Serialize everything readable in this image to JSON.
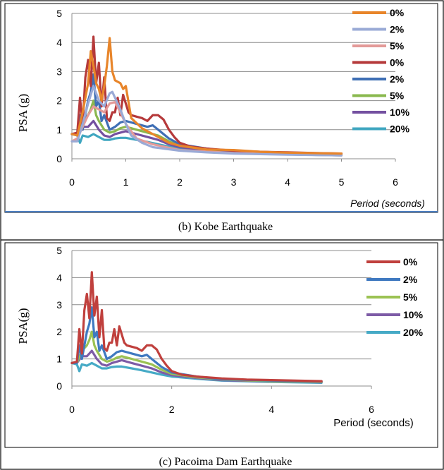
{
  "panels": [
    {
      "caption": "(b) Kobe Earthquake",
      "chart_data": {
        "type": "line",
        "title": "",
        "xlabel": "Period (seconds)",
        "ylabel": "PSA (g)",
        "xlim": [
          0,
          6
        ],
        "ylim": [
          0,
          5
        ],
        "xticks": [
          "0",
          "1",
          "2",
          "3",
          "4",
          "5",
          "6"
        ],
        "yticks": [
          "0",
          "1",
          "2",
          "3",
          "4",
          "5"
        ],
        "grid": "horizontal",
        "legend_position": "right",
        "series": [
          {
            "name": "0%",
            "color": "#e8852a",
            "x": [
              0,
              0.1,
              0.2,
              0.3,
              0.35,
              0.4,
              0.45,
              0.5,
              0.55,
              0.6,
              0.65,
              0.7,
              0.75,
              0.8,
              0.9,
              0.95,
              1.0,
              1.1,
              1.3,
              1.5,
              1.8,
              2.0,
              2.5,
              3.0,
              3.5,
              4.0,
              5.0
            ],
            "y": [
              0.85,
              0.8,
              1.6,
              2.6,
              3.7,
              3.2,
              2.6,
              2.4,
              2.0,
              2.5,
              3.2,
              4.15,
              3.0,
              2.7,
              2.6,
              2.4,
              2.5,
              1.4,
              1.05,
              0.85,
              0.55,
              0.45,
              0.32,
              0.3,
              0.24,
              0.21,
              0.18
            ]
          },
          {
            "name": "2%",
            "color": "#9aaad6",
            "x": [
              0,
              0.1,
              0.2,
              0.3,
              0.4,
              0.5,
              0.6,
              0.7,
              0.75,
              0.8,
              0.9,
              1.0,
              1.1,
              1.3,
              1.5,
              2.0,
              2.5,
              3.0,
              4.0,
              5.0
            ],
            "y": [
              0.6,
              0.6,
              1.2,
              1.9,
              2.5,
              2.0,
              1.8,
              2.25,
              2.3,
              2.1,
              1.7,
              1.2,
              0.8,
              0.55,
              0.4,
              0.28,
              0.22,
              0.18,
              0.14,
              0.12
            ]
          },
          {
            "name": "5%",
            "color": "#e39a98",
            "x": [
              0,
              0.1,
              0.2,
              0.3,
              0.4,
              0.5,
              0.6,
              0.7,
              0.8,
              0.9,
              1.0,
              1.2,
              1.5,
              2.0,
              3.0,
              4.0,
              5.0
            ],
            "y": [
              0.6,
              0.7,
              1.1,
              1.5,
              1.8,
              1.7,
              1.6,
              1.9,
              1.95,
              1.6,
              1.2,
              0.7,
              0.5,
              0.3,
              0.2,
              0.15,
              0.12
            ]
          },
          {
            "name": "0%",
            "color": "#b5393a",
            "x": [
              0,
              0.1,
              0.15,
              0.2,
              0.25,
              0.3,
              0.35,
              0.4,
              0.45,
              0.5,
              0.55,
              0.6,
              0.65,
              0.7,
              0.75,
              0.8,
              0.85,
              0.9,
              0.95,
              1.0,
              1.05,
              1.1,
              1.2,
              1.3,
              1.4,
              1.5,
              1.6,
              1.7,
              1.8,
              1.9,
              2.0,
              2.2,
              2.5,
              3.0,
              3.5,
              4.0,
              4.5,
              5.0
            ],
            "y": [
              0.85,
              0.9,
              2.1,
              1.2,
              2.8,
              3.4,
              2.5,
              4.2,
              2.6,
              3.3,
              1.8,
              2.8,
              1.4,
              1.3,
              1.6,
              1.6,
              2.1,
              1.5,
              2.2,
              1.9,
              1.6,
              1.5,
              1.45,
              1.4,
              1.3,
              1.5,
              1.5,
              1.35,
              1.0,
              0.75,
              0.55,
              0.42,
              0.35,
              0.28,
              0.24,
              0.22,
              0.2,
              0.18
            ]
          },
          {
            "name": "2%",
            "color": "#3f6fb5",
            "x": [
              0,
              0.1,
              0.15,
              0.2,
              0.3,
              0.35,
              0.4,
              0.45,
              0.5,
              0.55,
              0.6,
              0.7,
              0.8,
              0.9,
              1.0,
              1.1,
              1.2,
              1.4,
              1.5,
              1.6,
              1.8,
              2.0,
              2.5,
              3.0,
              4.0,
              5.0
            ],
            "y": [
              0.85,
              0.85,
              1.5,
              1.0,
              2.0,
              2.3,
              2.9,
              1.8,
              2.0,
              1.3,
              1.5,
              1.0,
              1.1,
              1.25,
              1.3,
              1.25,
              1.2,
              1.1,
              1.15,
              1.0,
              0.7,
              0.5,
              0.35,
              0.25,
              0.2,
              0.17
            ]
          },
          {
            "name": "5%",
            "color": "#8ab84e",
            "x": [
              0,
              0.1,
              0.2,
              0.3,
              0.35,
              0.4,
              0.45,
              0.5,
              0.6,
              0.7,
              0.8,
              0.9,
              1.0,
              1.1,
              1.2,
              1.4,
              1.6,
              1.8,
              2.0,
              2.5,
              3.0,
              4.0,
              5.0
            ],
            "y": [
              0.85,
              0.85,
              1.3,
              1.5,
              1.7,
              2.0,
              1.5,
              1.3,
              1.0,
              0.9,
              0.95,
              1.05,
              1.1,
              1.05,
              1.0,
              0.9,
              0.8,
              0.6,
              0.45,
              0.32,
              0.24,
              0.18,
              0.15
            ]
          },
          {
            "name": "10%",
            "color": "#7450a0",
            "x": [
              0,
              0.1,
              0.2,
              0.3,
              0.4,
              0.5,
              0.6,
              0.7,
              0.8,
              0.9,
              1.0,
              1.2,
              1.4,
              1.6,
              1.8,
              2.0,
              2.5,
              3.0,
              4.0,
              5.0
            ],
            "y": [
              0.85,
              0.85,
              1.1,
              1.1,
              1.3,
              1.0,
              0.8,
              0.75,
              0.85,
              0.9,
              0.95,
              0.85,
              0.75,
              0.65,
              0.5,
              0.4,
              0.3,
              0.22,
              0.17,
              0.14
            ]
          },
          {
            "name": "20%",
            "color": "#3fa6c0",
            "x": [
              0,
              0.1,
              0.15,
              0.2,
              0.3,
              0.4,
              0.5,
              0.6,
              0.7,
              0.8,
              0.9,
              1.0,
              1.2,
              1.4,
              1.6,
              1.8,
              2.0,
              2.5,
              3.0,
              4.0,
              5.0
            ],
            "y": [
              0.85,
              0.8,
              0.55,
              0.8,
              0.75,
              0.85,
              0.75,
              0.65,
              0.65,
              0.7,
              0.72,
              0.72,
              0.65,
              0.58,
              0.5,
              0.42,
              0.35,
              0.27,
              0.2,
              0.15,
              0.12
            ]
          }
        ]
      }
    },
    {
      "caption": "(c) Pacoima Dam Earthquake",
      "chart_data": {
        "type": "line",
        "title": "",
        "xlabel": "Period (seconds)",
        "ylabel": "PSA(g)",
        "xlim": [
          0,
          6
        ],
        "ylim": [
          0,
          5
        ],
        "xticks": [
          "0",
          "2",
          "4",
          "6"
        ],
        "yticks": [
          "0",
          "1",
          "2",
          "3",
          "4",
          "5"
        ],
        "grid": "horizontal",
        "legend_position": "right",
        "series": [
          {
            "name": "0%",
            "color": "#c0403d",
            "x": [
              0,
              0.1,
              0.15,
              0.2,
              0.25,
              0.3,
              0.35,
              0.4,
              0.45,
              0.5,
              0.55,
              0.6,
              0.65,
              0.7,
              0.75,
              0.8,
              0.85,
              0.9,
              0.95,
              1.0,
              1.05,
              1.1,
              1.2,
              1.3,
              1.4,
              1.5,
              1.6,
              1.7,
              1.8,
              1.9,
              2.0,
              2.2,
              2.5,
              3.0,
              3.5,
              4.0,
              4.5,
              5.0
            ],
            "y": [
              0.85,
              0.9,
              2.1,
              1.2,
              2.8,
              3.4,
              2.5,
              4.2,
              2.6,
              3.3,
              1.8,
              2.8,
              1.4,
              1.3,
              1.6,
              1.6,
              2.1,
              1.5,
              2.2,
              1.9,
              1.6,
              1.5,
              1.45,
              1.4,
              1.3,
              1.5,
              1.5,
              1.35,
              1.0,
              0.75,
              0.55,
              0.42,
              0.35,
              0.28,
              0.24,
              0.22,
              0.2,
              0.18
            ]
          },
          {
            "name": "2%",
            "color": "#3f79c0",
            "x": [
              0,
              0.1,
              0.15,
              0.2,
              0.3,
              0.35,
              0.4,
              0.45,
              0.5,
              0.55,
              0.6,
              0.7,
              0.8,
              0.9,
              1.0,
              1.1,
              1.2,
              1.4,
              1.5,
              1.6,
              1.8,
              2.0,
              2.5,
              3.0,
              4.0,
              5.0
            ],
            "y": [
              0.85,
              0.85,
              1.5,
              1.0,
              2.0,
              2.3,
              2.9,
              1.8,
              2.0,
              1.3,
              1.5,
              1.0,
              1.1,
              1.25,
              1.3,
              1.25,
              1.2,
              1.1,
              1.15,
              1.0,
              0.7,
              0.5,
              0.35,
              0.25,
              0.2,
              0.17
            ]
          },
          {
            "name": "5%",
            "color": "#9bc253",
            "x": [
              0,
              0.1,
              0.2,
              0.3,
              0.35,
              0.4,
              0.45,
              0.5,
              0.6,
              0.7,
              0.8,
              0.9,
              1.0,
              1.1,
              1.2,
              1.4,
              1.6,
              1.8,
              2.0,
              2.5,
              3.0,
              4.0,
              5.0
            ],
            "y": [
              0.85,
              0.85,
              1.3,
              1.5,
              1.7,
              2.0,
              1.5,
              1.3,
              1.0,
              0.9,
              0.95,
              1.05,
              1.1,
              1.05,
              1.0,
              0.9,
              0.8,
              0.6,
              0.45,
              0.32,
              0.24,
              0.18,
              0.15
            ]
          },
          {
            "name": "10%",
            "color": "#7d5ba6",
            "x": [
              0,
              0.1,
              0.2,
              0.3,
              0.4,
              0.5,
              0.6,
              0.7,
              0.8,
              0.9,
              1.0,
              1.2,
              1.4,
              1.6,
              1.8,
              2.0,
              2.5,
              3.0,
              4.0,
              5.0
            ],
            "y": [
              0.85,
              0.85,
              1.1,
              1.1,
              1.3,
              1.0,
              0.8,
              0.75,
              0.85,
              0.9,
              0.95,
              0.85,
              0.75,
              0.65,
              0.5,
              0.4,
              0.3,
              0.22,
              0.17,
              0.14
            ]
          },
          {
            "name": "20%",
            "color": "#46aac6",
            "x": [
              0,
              0.1,
              0.15,
              0.2,
              0.3,
              0.4,
              0.5,
              0.6,
              0.7,
              0.8,
              0.9,
              1.0,
              1.2,
              1.4,
              1.6,
              1.8,
              2.0,
              2.5,
              3.0,
              4.0,
              5.0
            ],
            "y": [
              0.85,
              0.8,
              0.55,
              0.8,
              0.75,
              0.85,
              0.75,
              0.65,
              0.65,
              0.7,
              0.72,
              0.72,
              0.65,
              0.58,
              0.5,
              0.42,
              0.35,
              0.27,
              0.2,
              0.15,
              0.12
            ]
          }
        ]
      }
    }
  ]
}
